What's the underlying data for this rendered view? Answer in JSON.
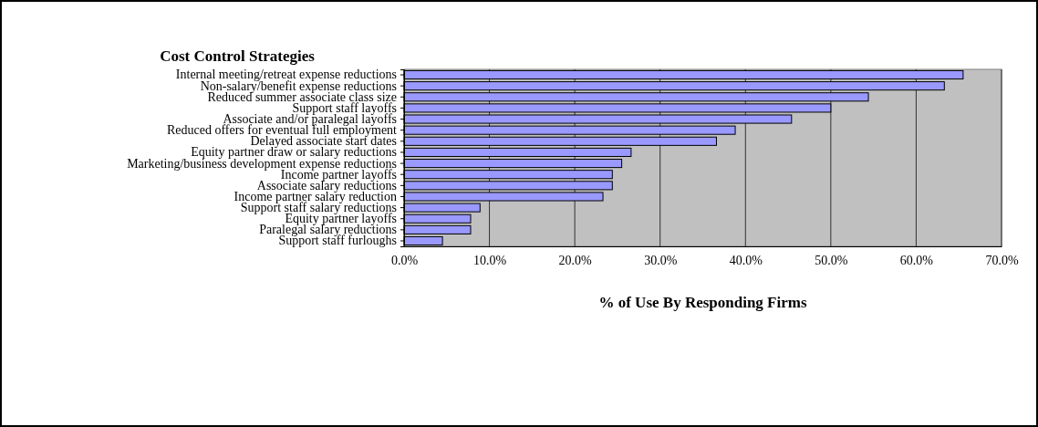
{
  "chart_data": {
    "type": "bar",
    "orientation": "horizontal",
    "title": "Cost Control Strategies",
    "xlabel": "% of Use By Responding Firms",
    "categories": [
      "Internal meeting/retreat expense reductions",
      "Non-salary/benefit expense reductions",
      "Reduced summer associate class size",
      "Support staff layoffs",
      "Associate and/or paralegal layoffs",
      "Reduced offers for eventual full employment ",
      "Delayed associate start dates",
      "Equity partner draw or salary reductions",
      "Marketing/business development expense reductions",
      "Income partner layoffs",
      "Associate salary reductions",
      "Income partner salary reduction",
      "Support staff salary reductions",
      "Equity partner layoffs",
      "Paralegal salary reductions",
      "Support staff furloughs"
    ],
    "values": [
      65.5,
      63.3,
      54.4,
      50.0,
      45.4,
      38.8,
      36.6,
      26.6,
      25.5,
      24.4,
      24.4,
      23.3,
      8.9,
      7.8,
      7.8,
      4.5
    ],
    "color": "#9999ff",
    "xlim": [
      0,
      70
    ],
    "xticks": [
      {
        "value": 0,
        "label": "0.0%"
      },
      {
        "value": 10,
        "label": "10.0%"
      },
      {
        "value": 20,
        "label": "20.0%"
      },
      {
        "value": 30,
        "label": "30.0%"
      },
      {
        "value": 40,
        "label": "40.0%"
      },
      {
        "value": 50,
        "label": "50.0%"
      },
      {
        "value": 60,
        "label": "60.0%"
      },
      {
        "value": 70,
        "label": "70.0%"
      }
    ],
    "grid": "x"
  }
}
